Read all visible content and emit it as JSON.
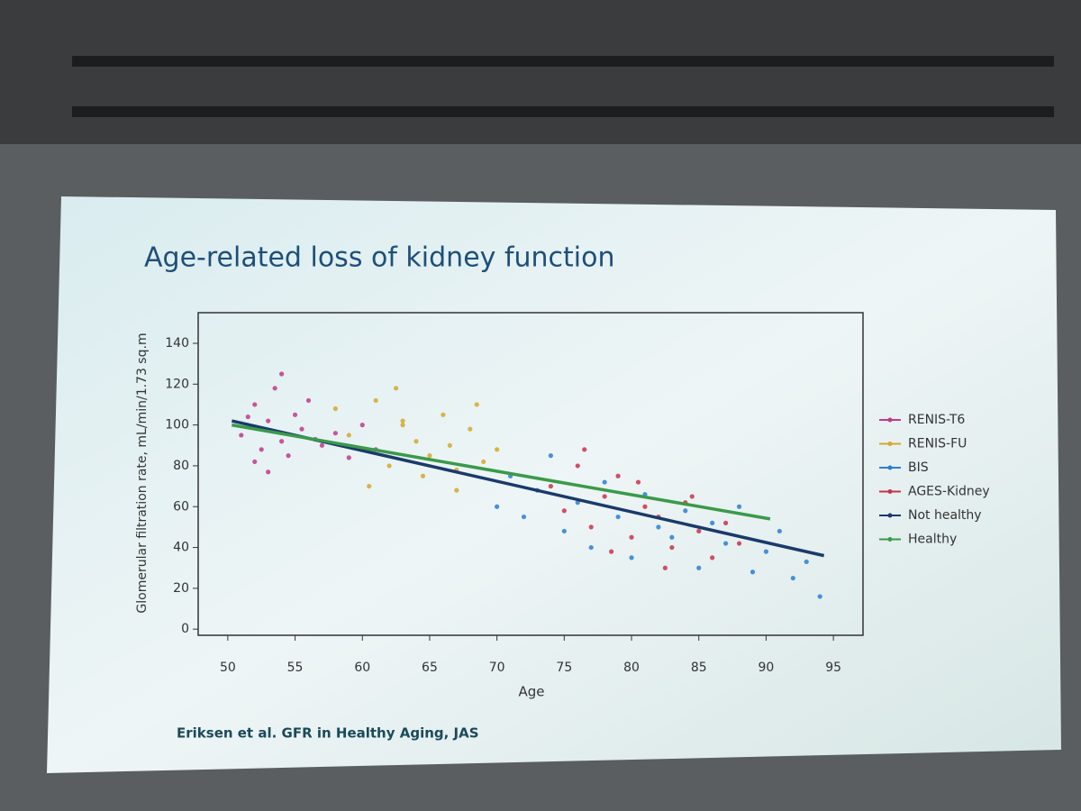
{
  "chart_data": {
    "type": "scatter",
    "title": "Age-related loss of kidney function",
    "x_label": "Age",
    "y_label": "Glomerular filtration rate, mL/min/1.73 sq.m",
    "source": "Eriksen et al. GFR in Healthy Aging, JAS",
    "xlim": [
      47.8,
      97.2
    ],
    "ylim": [
      -3,
      155
    ],
    "xticks": [
      50,
      55,
      60,
      65,
      70,
      75,
      80,
      85,
      90,
      95
    ],
    "yticks": [
      0,
      20,
      40,
      60,
      80,
      100,
      120,
      140
    ],
    "legend": "right",
    "series": [
      {
        "name": "RENIS-T6",
        "type": "scatter",
        "color": "#c0398a",
        "x": [
          51,
          52,
          52.5,
          53,
          53.5,
          54,
          54.5,
          55,
          55.5,
          56,
          57,
          58,
          59,
          52,
          51.5,
          54,
          56.5,
          60,
          61,
          53
        ],
        "values": [
          95,
          110,
          88,
          102,
          118,
          92,
          85,
          105,
          98,
          112,
          90,
          96,
          84,
          82,
          104,
          125,
          93,
          100,
          88,
          77
        ]
      },
      {
        "name": "RENIS-FU",
        "type": "scatter",
        "color": "#d4a82a",
        "x": [
          58,
          59,
          60,
          61,
          62,
          63,
          64,
          65,
          66,
          67,
          68,
          69,
          60.5,
          62.5,
          64.5,
          66.5,
          68.5,
          63,
          67,
          70
        ],
        "values": [
          108,
          95,
          88,
          112,
          80,
          100,
          92,
          85,
          105,
          78,
          98,
          82,
          70,
          118,
          75,
          90,
          110,
          102,
          68,
          88
        ]
      },
      {
        "name": "BIS",
        "type": "scatter",
        "color": "#2a7fd4",
        "x": [
          70,
          71,
          72,
          73,
          74,
          75,
          76,
          77,
          78,
          79,
          80,
          81,
          82,
          83,
          84,
          85,
          86,
          87,
          88,
          89,
          90,
          91,
          92,
          93,
          94
        ],
        "values": [
          60,
          75,
          55,
          68,
          85,
          48,
          62,
          40,
          72,
          55,
          35,
          66,
          50,
          45,
          58,
          30,
          52,
          42,
          60,
          28,
          38,
          48,
          25,
          33,
          16
        ]
      },
      {
        "name": "AGES-Kidney",
        "type": "scatter",
        "color": "#c8324a",
        "x": [
          74,
          75,
          76,
          77,
          78,
          79,
          80,
          81,
          82,
          83,
          84,
          85,
          86,
          87,
          88,
          76.5,
          78.5,
          80.5,
          82.5,
          84.5
        ],
        "values": [
          70,
          58,
          80,
          50,
          65,
          75,
          45,
          60,
          55,
          40,
          62,
          48,
          35,
          52,
          42,
          88,
          38,
          72,
          30,
          65
        ]
      },
      {
        "name": "Not healthy",
        "type": "line",
        "color": "#1a3a6a",
        "x": [
          50.3,
          94.3
        ],
        "values": [
          102,
          36
        ]
      },
      {
        "name": "Healthy",
        "type": "line",
        "color": "#3a9a4a",
        "x": [
          50.3,
          90.3
        ],
        "values": [
          100,
          54
        ]
      }
    ]
  }
}
